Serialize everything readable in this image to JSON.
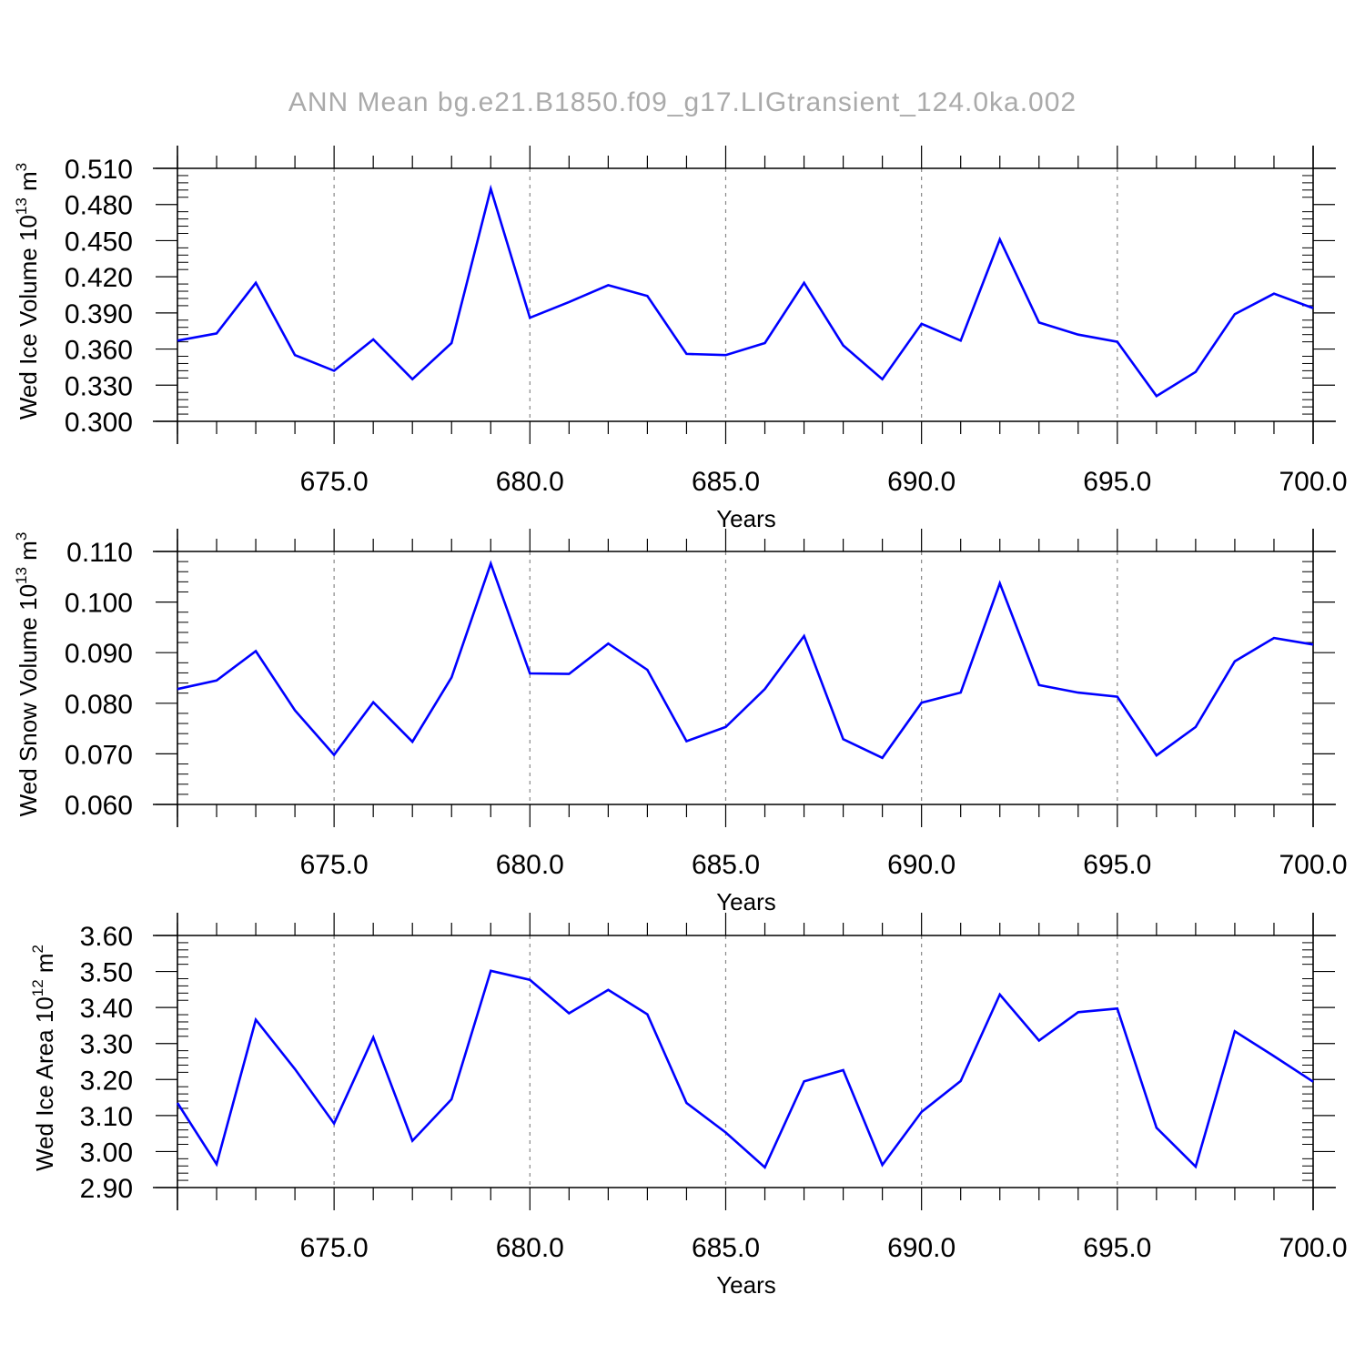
{
  "title": "ANN Mean bg.e21.B1850.f09_g17.LIGtransient_124.0ka.002",
  "colors": {
    "line": "#0000ff",
    "axis": "#000000",
    "grid": "#888888",
    "title": "#aaaaaa"
  },
  "chart_data": [
    {
      "type": "line",
      "ylabel": {
        "text": "Wed Ice Volume 10",
        "sup": "13",
        "unit": " m",
        "unit_sup": "3"
      },
      "xlabel": "Years",
      "xlim": [
        671,
        700
      ],
      "ylim": [
        0.3,
        0.51
      ],
      "yticks": [
        "0.300",
        "0.330",
        "0.360",
        "0.390",
        "0.420",
        "0.450",
        "0.480",
        "0.510"
      ],
      "xticks": [
        "675.0",
        "680.0",
        "685.0",
        "690.0",
        "695.0",
        "700.0"
      ],
      "grid": "dashed vertical at major x ticks",
      "x": [
        671,
        672,
        673,
        674,
        675,
        676,
        677,
        678,
        679,
        680,
        681,
        682,
        683,
        684,
        685,
        686,
        687,
        688,
        689,
        690,
        691,
        692,
        693,
        694,
        695,
        696,
        697,
        698,
        699,
        700
      ],
      "series": [
        {
          "values": [
            0.367,
            0.373,
            0.415,
            0.355,
            0.342,
            0.368,
            0.335,
            0.365,
            0.493,
            0.386,
            0.399,
            0.413,
            0.404,
            0.356,
            0.355,
            0.365,
            0.415,
            0.363,
            0.335,
            0.381,
            0.367,
            0.451,
            0.382,
            0.372,
            0.366,
            0.321,
            0.341,
            0.389,
            0.406,
            0.394
          ]
        }
      ]
    },
    {
      "type": "line",
      "ylabel": {
        "text": "Wed Snow Volume 10",
        "sup": "13",
        "unit": " m",
        "unit_sup": "3"
      },
      "xlabel": "Years",
      "xlim": [
        671,
        700
      ],
      "ylim": [
        0.06,
        0.11
      ],
      "yticks": [
        "0.060",
        "0.070",
        "0.080",
        "0.090",
        "0.100",
        "0.110"
      ],
      "xticks": [
        "675.0",
        "680.0",
        "685.0",
        "690.0",
        "695.0",
        "700.0"
      ],
      "grid": "dashed vertical at major x ticks",
      "x": [
        671,
        672,
        673,
        674,
        675,
        676,
        677,
        678,
        679,
        680,
        681,
        682,
        683,
        684,
        685,
        686,
        687,
        688,
        689,
        690,
        691,
        692,
        693,
        694,
        695,
        696,
        697,
        698,
        699,
        700
      ],
      "series": [
        {
          "values": [
            0.0828,
            0.0845,
            0.0903,
            0.0786,
            0.0698,
            0.0802,
            0.0724,
            0.0851,
            0.1076,
            0.0859,
            0.0858,
            0.0918,
            0.0866,
            0.0725,
            0.0753,
            0.0828,
            0.0933,
            0.0729,
            0.0692,
            0.0801,
            0.0821,
            0.1037,
            0.0836,
            0.0821,
            0.0813,
            0.0697,
            0.0753,
            0.0883,
            0.0929,
            0.0916
          ]
        }
      ]
    },
    {
      "type": "line",
      "ylabel": {
        "text": "Wed Ice Area 10",
        "sup": "12",
        "unit": " m",
        "unit_sup": "2"
      },
      "xlabel": "Years",
      "xlim": [
        671,
        700
      ],
      "ylim": [
        2.9,
        3.6
      ],
      "yticks": [
        "2.90",
        "3.00",
        "3.10",
        "3.20",
        "3.30",
        "3.40",
        "3.50",
        "3.60"
      ],
      "xticks": [
        "675.0",
        "680.0",
        "685.0",
        "690.0",
        "695.0",
        "700.0"
      ],
      "grid": "dashed vertical at major x ticks",
      "x": [
        671,
        672,
        673,
        674,
        675,
        676,
        677,
        678,
        679,
        680,
        681,
        682,
        683,
        684,
        685,
        686,
        687,
        688,
        689,
        690,
        691,
        692,
        693,
        694,
        695,
        696,
        697,
        698,
        699,
        700
      ],
      "series": [
        {
          "values": [
            3.135,
            2.965,
            3.366,
            3.229,
            3.078,
            3.317,
            3.03,
            3.145,
            3.502,
            3.477,
            3.384,
            3.449,
            3.381,
            3.135,
            3.053,
            2.956,
            3.195,
            3.226,
            2.963,
            3.11,
            3.196,
            3.436,
            3.308,
            3.387,
            3.397,
            3.066,
            2.958,
            3.334,
            3.265,
            3.194
          ]
        }
      ]
    }
  ]
}
